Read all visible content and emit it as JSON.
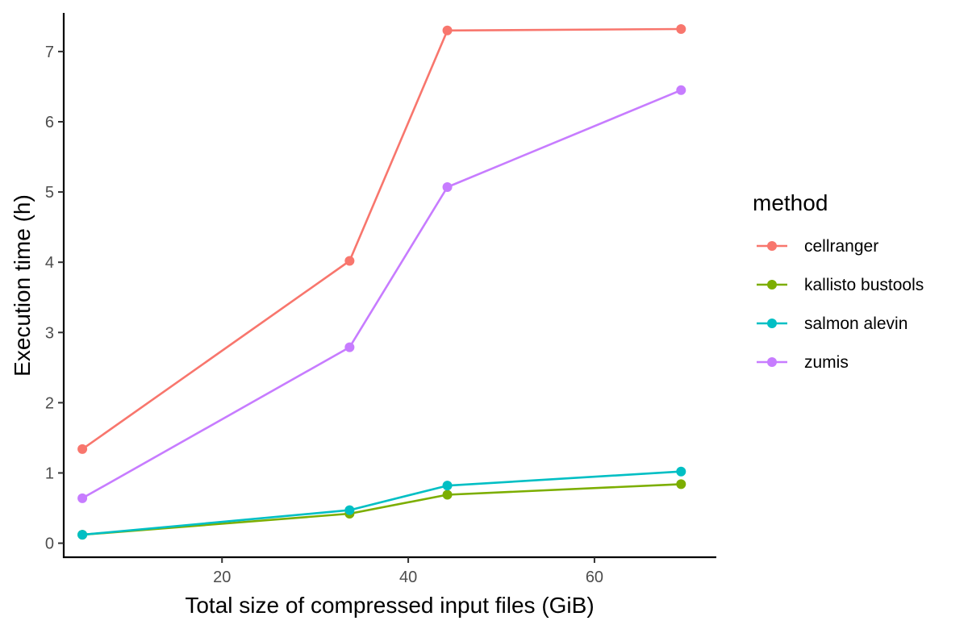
{
  "chart_data": {
    "type": "line",
    "xlabel": "Total size of compressed input files (GiB)",
    "ylabel": "Execution time (h)",
    "xlim": [
      3,
      73
    ],
    "ylim": [
      -0.2,
      7.55
    ],
    "x_ticks": [
      20,
      40,
      60
    ],
    "y_ticks": [
      0,
      1,
      2,
      3,
      4,
      5,
      6,
      7
    ],
    "grid": false,
    "legend": {
      "title": "method",
      "position": "right"
    },
    "series": [
      {
        "name": "cellranger",
        "color": "#F8766D",
        "points": [
          [
            5,
            1.34
          ],
          [
            33.7,
            4.02
          ],
          [
            44.2,
            7.3
          ],
          [
            69.3,
            7.32
          ]
        ]
      },
      {
        "name": "kallisto bustools",
        "color": "#7CAE00",
        "points": [
          [
            5,
            0.12
          ],
          [
            33.7,
            0.42
          ],
          [
            44.2,
            0.69
          ],
          [
            69.3,
            0.84
          ]
        ]
      },
      {
        "name": "salmon alevin",
        "color": "#00BFC4",
        "points": [
          [
            5,
            0.12
          ],
          [
            33.7,
            0.47
          ],
          [
            44.2,
            0.82
          ],
          [
            69.3,
            1.02
          ]
        ]
      },
      {
        "name": "zumis",
        "color": "#C77CFF",
        "points": [
          [
            5,
            0.64
          ],
          [
            33.7,
            2.79
          ],
          [
            44.2,
            5.07
          ],
          [
            69.3,
            6.45
          ]
        ]
      }
    ]
  }
}
